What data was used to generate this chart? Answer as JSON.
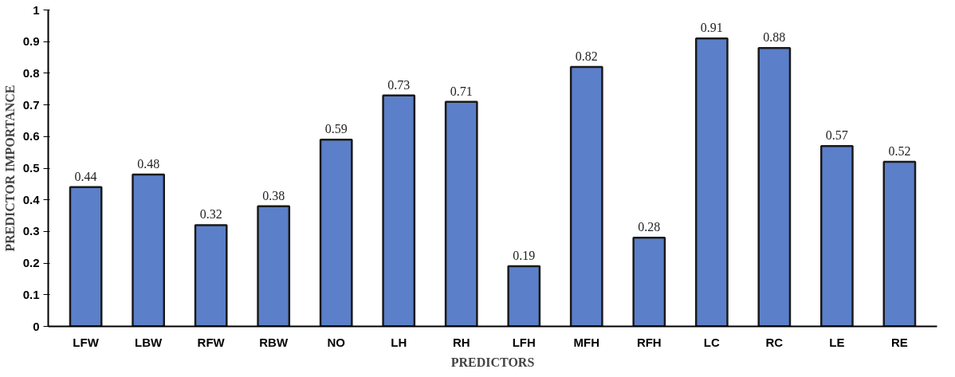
{
  "chart_data": {
    "type": "bar",
    "xlabel": "PREDICTORS",
    "ylabel": "PREDICTOR IMPORTANCE",
    "categories": [
      "LFW",
      "LBW",
      "RFW",
      "RBW",
      "NO",
      "LH",
      "RH",
      "LFH",
      "MFH",
      "RFH",
      "LC",
      "RC",
      "LE",
      "RE"
    ],
    "values": [
      0.44,
      0.48,
      0.32,
      0.38,
      0.59,
      0.73,
      0.71,
      0.19,
      0.82,
      0.28,
      0.91,
      0.88,
      0.57,
      0.52
    ],
    "color": "#5b7fc9",
    "ylim": [
      0,
      1
    ],
    "yticks": [
      0,
      0.1,
      0.2,
      0.3,
      0.4,
      0.5,
      0.6,
      0.7,
      0.8,
      0.9,
      1
    ],
    "grid": false,
    "data_labels": true
  }
}
